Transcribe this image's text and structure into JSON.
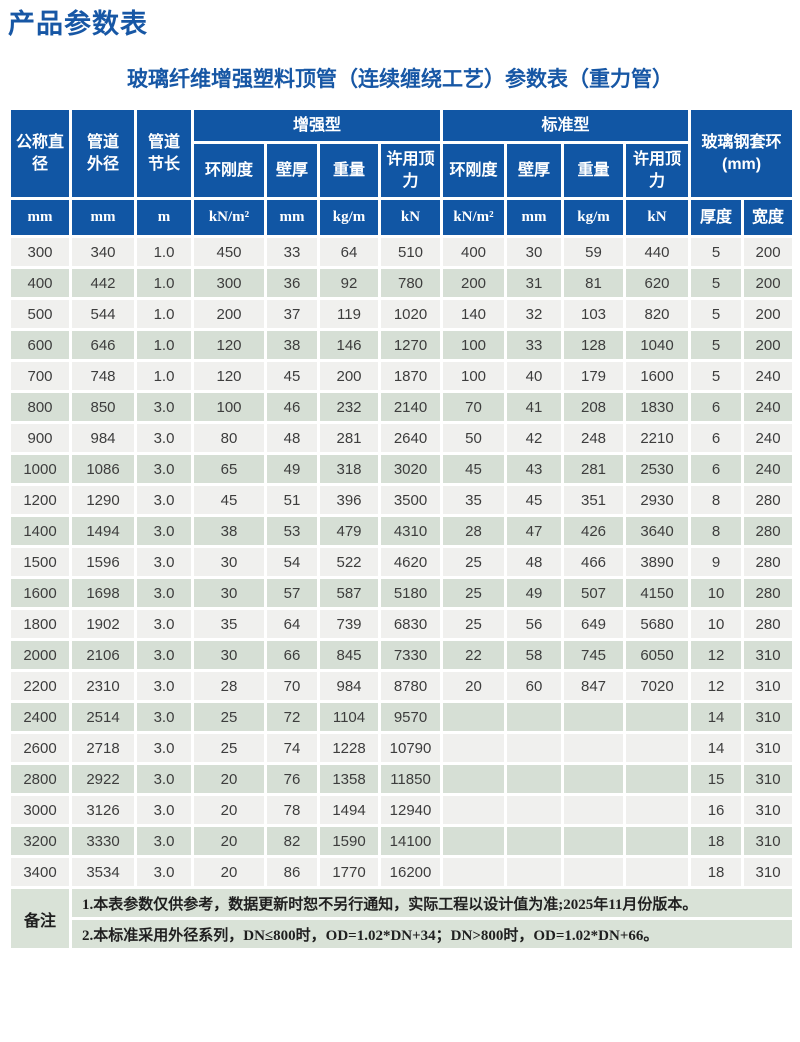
{
  "page": {
    "title": "产品参数表",
    "subtitle": "玻璃纤维增强塑料顶管（连续缠绕工艺）参数表（重力管）"
  },
  "colors": {
    "header_blue": "#1156a4",
    "title_blue": "#1757a5",
    "row_gray": "#f0f0ee",
    "row_green": "#d6dfd5",
    "notes_green": "#d9e2d7"
  },
  "table": {
    "header": {
      "nominal_diameter": "公称直径",
      "pipe_od": [
        "管道",
        "外径"
      ],
      "pipe_segment_length": [
        "管道",
        "节长"
      ],
      "reinforced_type": "增强型",
      "standard_type": "标准型",
      "frp_sleeve": [
        "玻璃钢套环",
        "(mm)"
      ],
      "sub_columns": [
        "环刚度",
        "壁厚",
        "重量",
        "许用顶力"
      ],
      "units": [
        "mm",
        "mm",
        "m",
        "kN/m²",
        "mm",
        "kg/m",
        "kN",
        "kN/m²",
        "mm",
        "kg/m",
        "kN"
      ],
      "sleeve_columns": [
        "厚度",
        "宽度"
      ]
    },
    "rows": [
      [
        "300",
        "340",
        "1.0",
        "450",
        "33",
        "64",
        "510",
        "400",
        "30",
        "59",
        "440",
        "5",
        "200"
      ],
      [
        "400",
        "442",
        "1.0",
        "300",
        "36",
        "92",
        "780",
        "200",
        "31",
        "81",
        "620",
        "5",
        "200"
      ],
      [
        "500",
        "544",
        "1.0",
        "200",
        "37",
        "119",
        "1020",
        "140",
        "32",
        "103",
        "820",
        "5",
        "200"
      ],
      [
        "600",
        "646",
        "1.0",
        "120",
        "38",
        "146",
        "1270",
        "100",
        "33",
        "128",
        "1040",
        "5",
        "200"
      ],
      [
        "700",
        "748",
        "1.0",
        "120",
        "45",
        "200",
        "1870",
        "100",
        "40",
        "179",
        "1600",
        "5",
        "240"
      ],
      [
        "800",
        "850",
        "3.0",
        "100",
        "46",
        "232",
        "2140",
        "70",
        "41",
        "208",
        "1830",
        "6",
        "240"
      ],
      [
        "900",
        "984",
        "3.0",
        "80",
        "48",
        "281",
        "2640",
        "50",
        "42",
        "248",
        "2210",
        "6",
        "240"
      ],
      [
        "1000",
        "1086",
        "3.0",
        "65",
        "49",
        "318",
        "3020",
        "45",
        "43",
        "281",
        "2530",
        "6",
        "240"
      ],
      [
        "1200",
        "1290",
        "3.0",
        "45",
        "51",
        "396",
        "3500",
        "35",
        "45",
        "351",
        "2930",
        "8",
        "280"
      ],
      [
        "1400",
        "1494",
        "3.0",
        "38",
        "53",
        "479",
        "4310",
        "28",
        "47",
        "426",
        "3640",
        "8",
        "280"
      ],
      [
        "1500",
        "1596",
        "3.0",
        "30",
        "54",
        "522",
        "4620",
        "25",
        "48",
        "466",
        "3890",
        "9",
        "280"
      ],
      [
        "1600",
        "1698",
        "3.0",
        "30",
        "57",
        "587",
        "5180",
        "25",
        "49",
        "507",
        "4150",
        "10",
        "280"
      ],
      [
        "1800",
        "1902",
        "3.0",
        "35",
        "64",
        "739",
        "6830",
        "25",
        "56",
        "649",
        "5680",
        "10",
        "280"
      ],
      [
        "2000",
        "2106",
        "3.0",
        "30",
        "66",
        "845",
        "7330",
        "22",
        "58",
        "745",
        "6050",
        "12",
        "310"
      ],
      [
        "2200",
        "2310",
        "3.0",
        "28",
        "70",
        "984",
        "8780",
        "20",
        "60",
        "847",
        "7020",
        "12",
        "310"
      ],
      [
        "2400",
        "2514",
        "3.0",
        "25",
        "72",
        "1104",
        "9570",
        "",
        "",
        "",
        "",
        "14",
        "310"
      ],
      [
        "2600",
        "2718",
        "3.0",
        "25",
        "74",
        "1228",
        "10790",
        "",
        "",
        "",
        "",
        "14",
        "310"
      ],
      [
        "2800",
        "2922",
        "3.0",
        "20",
        "76",
        "1358",
        "11850",
        "",
        "",
        "",
        "",
        "15",
        "310"
      ],
      [
        "3000",
        "3126",
        "3.0",
        "20",
        "78",
        "1494",
        "12940",
        "",
        "",
        "",
        "",
        "16",
        "310"
      ],
      [
        "3200",
        "3330",
        "3.0",
        "20",
        "82",
        "1590",
        "14100",
        "",
        "",
        "",
        "",
        "18",
        "310"
      ],
      [
        "3400",
        "3534",
        "3.0",
        "20",
        "86",
        "1770",
        "16200",
        "",
        "",
        "",
        "",
        "18",
        "310"
      ]
    ],
    "notes": {
      "label": "备注",
      "lines": [
        "1.本表参数仅供参考，数据更新时恕不另行通知，实际工程以设计值为准;2025年11月份版本。",
        "2.本标准采用外径系列，DN≤800时，OD=1.02*DN+34；DN>800时，OD=1.02*DN+66。"
      ]
    }
  }
}
